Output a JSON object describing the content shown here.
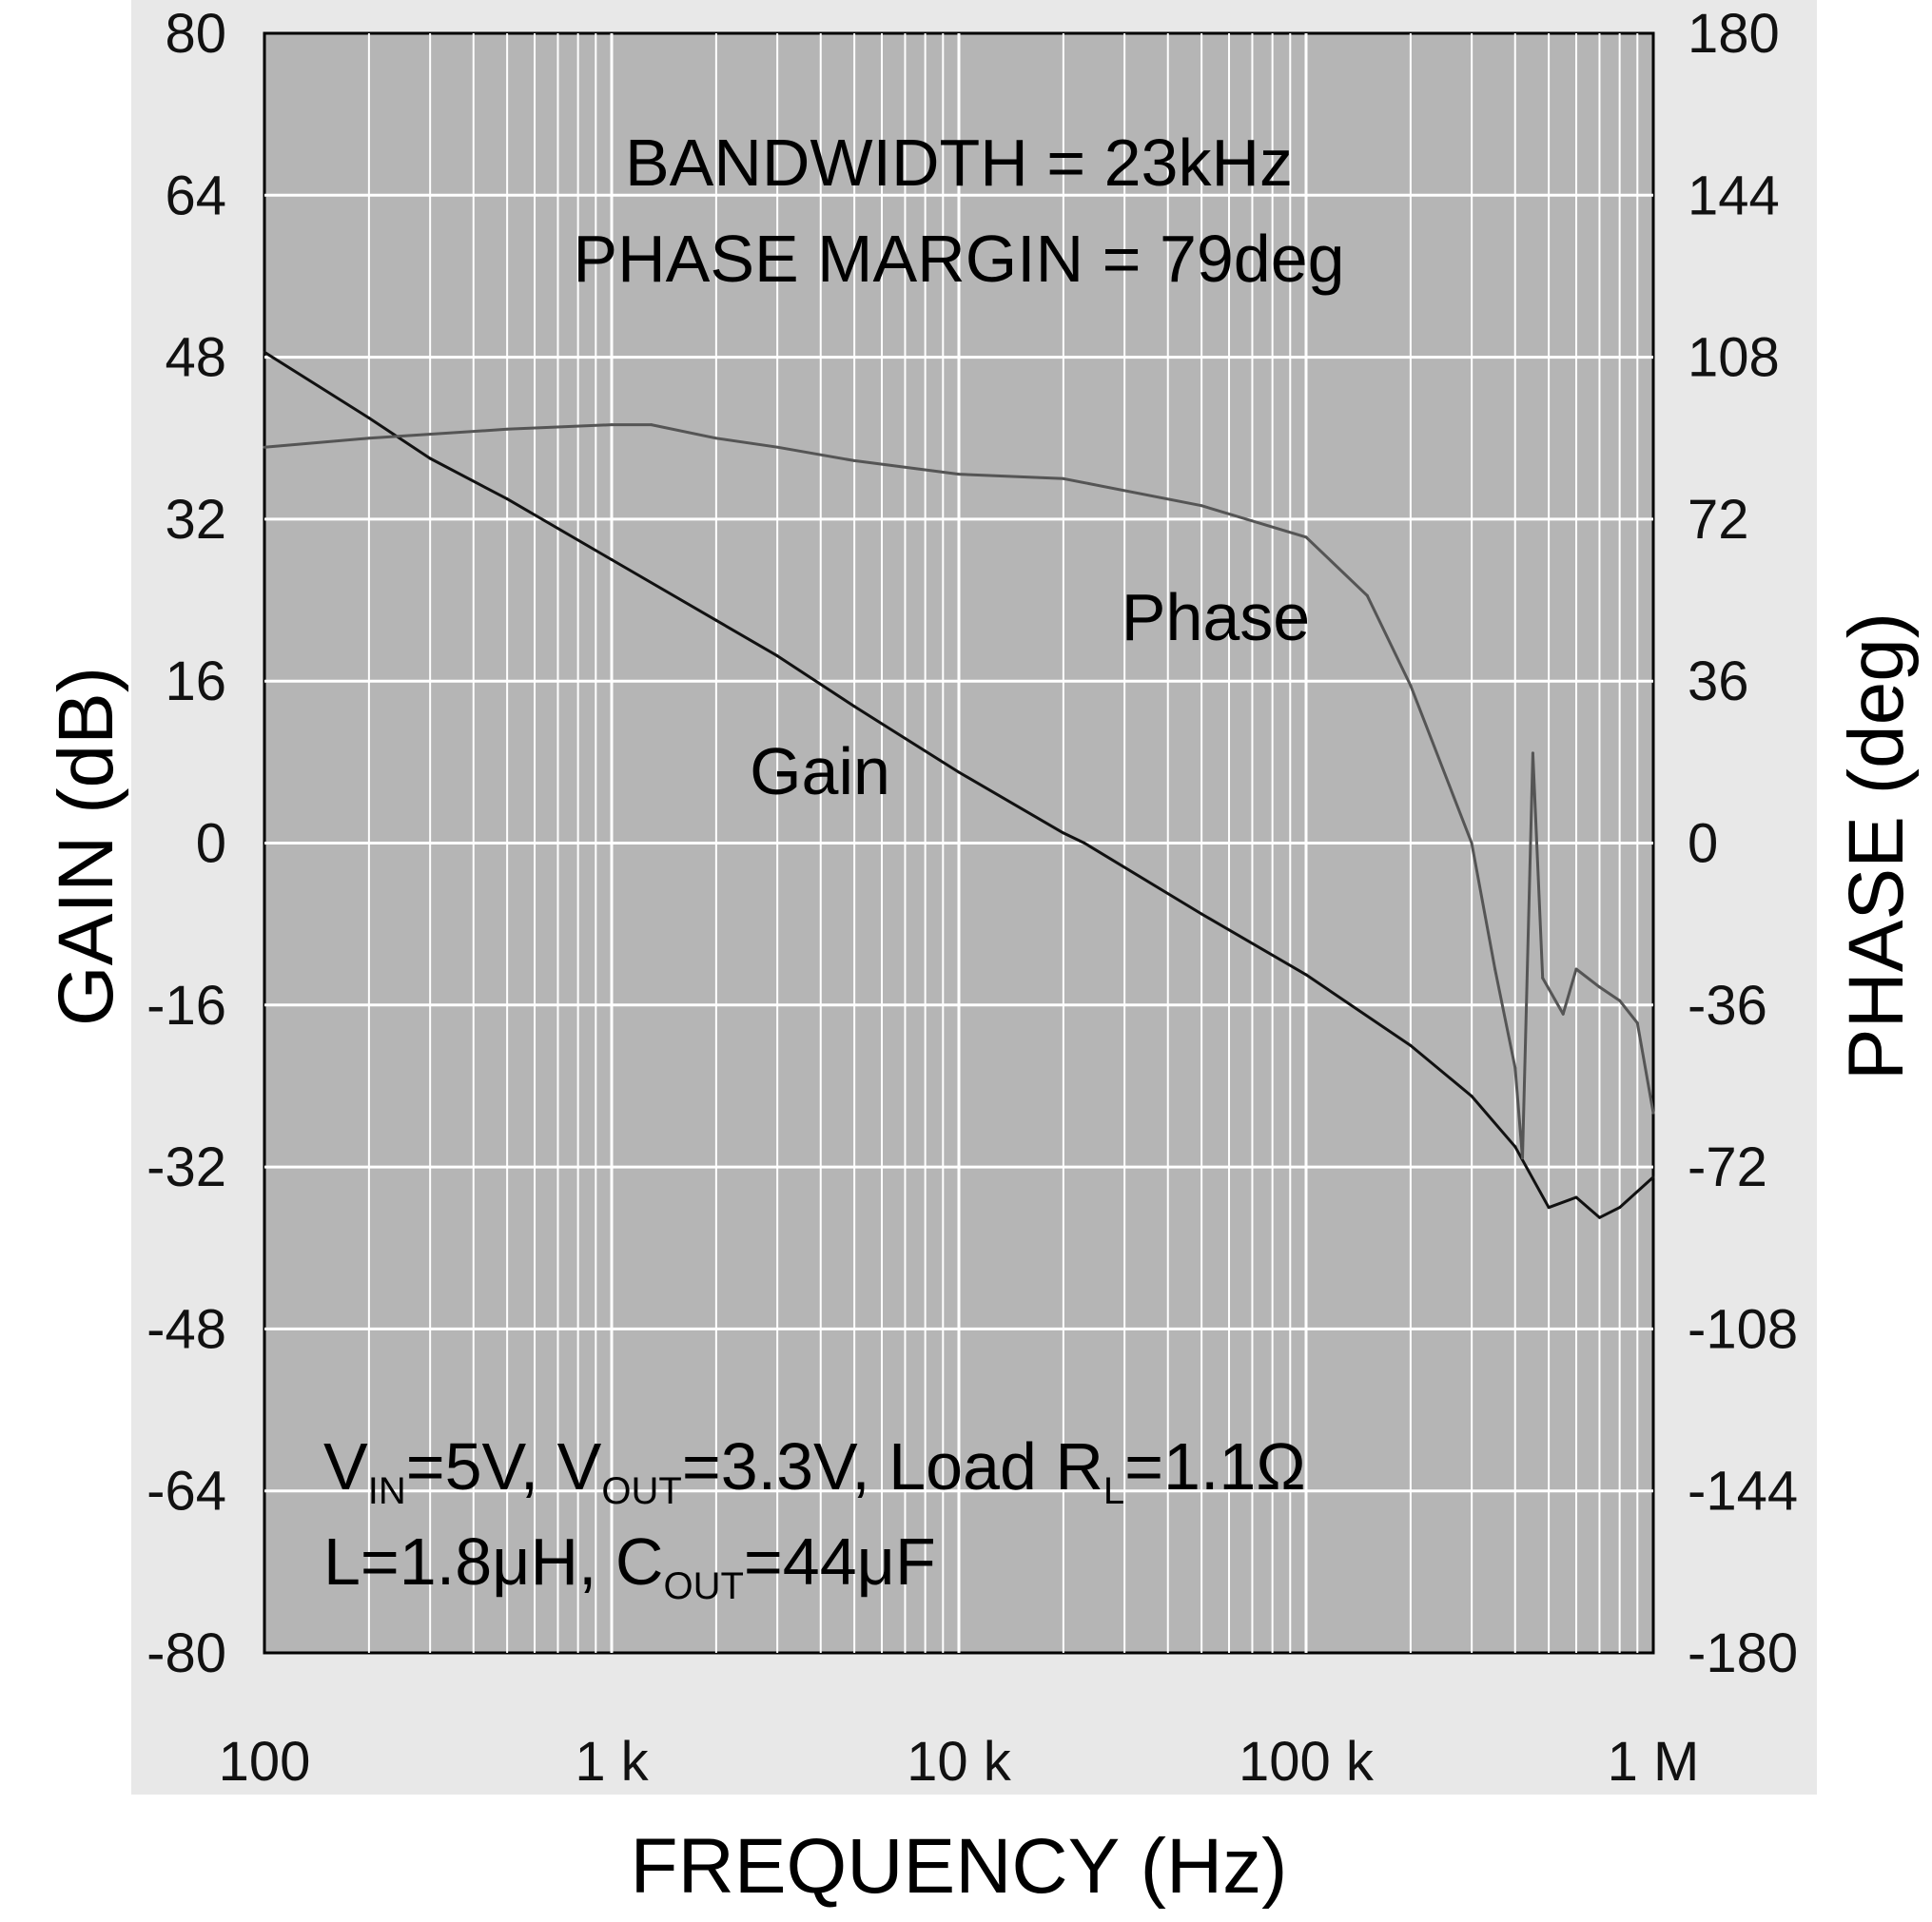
{
  "chart_data": {
    "type": "line",
    "title": "",
    "xlabel": "FREQUENCY (Hz)",
    "ylabel": "GAIN (dB)",
    "ylabel_right": "PHASE (deg)",
    "x_scale": "log",
    "xlim": [
      100,
      1000000
    ],
    "ylim": [
      -80,
      80
    ],
    "ylim_right": [
      -180,
      180
    ],
    "x_ticks": [
      {
        "value": 100,
        "label": "100"
      },
      {
        "value": 1000,
        "label": "1 k"
      },
      {
        "value": 10000,
        "label": "10 k"
      },
      {
        "value": 100000,
        "label": "100 k"
      },
      {
        "value": 1000000,
        "label": "1 M"
      }
    ],
    "y_ticks_left": [
      "80",
      "64",
      "48",
      "32",
      "16",
      "0",
      "-16",
      "-32",
      "-48",
      "-64",
      "-80"
    ],
    "y_ticks_right": [
      "180",
      "144",
      "108",
      "72",
      "36",
      "0",
      "-36",
      "-72",
      "-108",
      "-144",
      "-180"
    ],
    "grid": true,
    "annotations": {
      "bandwidth": "BANDWIDTH = 23kHz",
      "phase_margin": "PHASE MARGIN = 79deg",
      "cond1": {
        "v": "V",
        "v_sub": "IN",
        "eq1": "=5V, V",
        "vout_sub": "OUT",
        "eq2": "=3.3V, Load R",
        "r_sub": "L",
        "eq3": "=1.1Ω"
      },
      "cond2": {
        "l": "L=1.8μH, C",
        "c_sub": "OUT",
        "eq": "=44μF"
      }
    },
    "series": [
      {
        "name": "Gain",
        "axis": "left",
        "label": "Gain",
        "points": [
          [
            100,
            48.5
          ],
          [
            200,
            42
          ],
          [
            300,
            38
          ],
          [
            500,
            34
          ],
          [
            1000,
            28
          ],
          [
            2000,
            22
          ],
          [
            3000,
            18.5
          ],
          [
            5000,
            13.5
          ],
          [
            10000,
            7
          ],
          [
            20000,
            1
          ],
          [
            23000,
            0
          ],
          [
            50000,
            -7
          ],
          [
            100000,
            -13
          ],
          [
            200000,
            -20
          ],
          [
            300000,
            -25
          ],
          [
            400000,
            -30
          ],
          [
            500000,
            -36
          ],
          [
            600000,
            -35
          ],
          [
            700000,
            -37
          ],
          [
            800000,
            -36
          ],
          [
            1000000,
            -33
          ]
        ]
      },
      {
        "name": "Phase",
        "axis": "right",
        "label": "Phase",
        "points": [
          [
            100,
            88
          ],
          [
            200,
            90
          ],
          [
            500,
            92
          ],
          [
            1000,
            93
          ],
          [
            1300,
            93
          ],
          [
            2000,
            90
          ],
          [
            3000,
            88
          ],
          [
            5000,
            85
          ],
          [
            10000,
            82
          ],
          [
            20000,
            81
          ],
          [
            50000,
            75
          ],
          [
            100000,
            68
          ],
          [
            150000,
            55
          ],
          [
            200000,
            35
          ],
          [
            300000,
            0
          ],
          [
            350000,
            -28
          ],
          [
            400000,
            -50
          ],
          [
            420000,
            -70
          ],
          [
            450000,
            20
          ],
          [
            480000,
            -30
          ],
          [
            550000,
            -38
          ],
          [
            600000,
            -28
          ],
          [
            700000,
            -32
          ],
          [
            800000,
            -35
          ],
          [
            900000,
            -40
          ],
          [
            1000000,
            -60
          ]
        ]
      }
    ]
  }
}
